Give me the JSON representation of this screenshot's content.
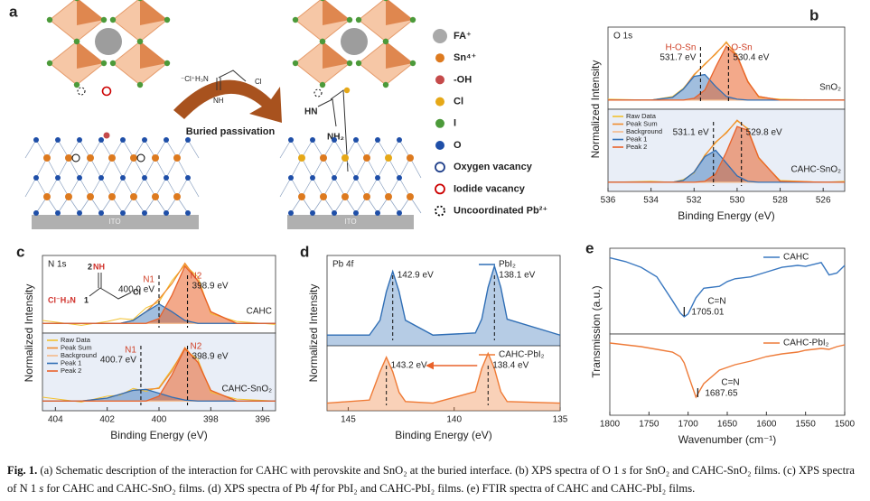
{
  "panel_label": "a",
  "schematic": {
    "legend": [
      "FA⁺",
      "Sn⁴⁺",
      "-OH",
      "Cl",
      "I",
      "O",
      "Oxygen vacancy",
      "Iodide vacancy",
      "Uncoordinated Pb²⁺"
    ],
    "arrow_label": "Buried passivation",
    "molecule": [
      "⁻Cl⁺H₃N",
      "NH",
      "Cl"
    ],
    "bound_molecule": [
      "HN",
      "NH₂"
    ],
    "substrates": [
      "ITO",
      "ITO"
    ]
  },
  "chart_data": [
    {
      "type": "line",
      "panel_label": "b",
      "title": "O 1s",
      "xlabel": "Binding Energy (eV)",
      "ylabel": "Normalized Intensity",
      "xlim": [
        536,
        525
      ],
      "xticks": [
        536,
        534,
        532,
        530,
        528,
        526
      ],
      "ylim": [
        0,
        9
      ],
      "x": [
        536,
        534,
        533,
        532.5,
        532,
        531.5,
        531,
        530.5,
        530,
        529.5,
        529,
        528,
        526,
        525
      ],
      "series": [
        {
          "name": "Raw Data",
          "color": "#f2c12e"
        },
        {
          "name": "Peak Sum",
          "color": "#f08c2e"
        },
        {
          "name": "Background",
          "color": "#f5b98a"
        },
        {
          "name": "Peak 1",
          "color": "#2f6eb5"
        },
        {
          "name": "Peak 2",
          "color": "#e9622a"
        }
      ],
      "panels": [
        {
          "name": "SnO₂",
          "values": [
            [
              1.1,
              1,
              1.4,
              2.3,
              3.7,
              5,
              6,
              7.4,
              5.8,
              3.1,
              1.3,
              1.1,
              1,
              1
            ],
            [
              1,
              1,
              1.3,
              2.2,
              3.8,
              4.9,
              6.1,
              7.3,
              5.9,
              3,
              1.4,
              1,
              1,
              1
            ],
            [
              1,
              1,
              1,
              1,
              1,
              1,
              1,
              1,
              1,
              1,
              1,
              1,
              1,
              1
            ],
            [
              1,
              1,
              1.3,
              2.2,
              3.6,
              3.8,
              2.5,
              1.4,
              1.1,
              1,
              1,
              1,
              1,
              1
            ],
            [
              1,
              1,
              1,
              1,
              1.2,
              2.1,
              4.6,
              6.9,
              5.8,
              3,
              1.4,
              1,
              1,
              1
            ]
          ],
          "peaks": [
            {
              "value": 531.7,
              "label": "531.7 eV",
              "name": "H-O-Sn"
            },
            {
              "value": 530.4,
              "label": "530.4 eV",
              "name": "O-Sn"
            }
          ]
        },
        {
          "name": "CAHC-SnO₂",
          "values": [
            [
              1,
              1.1,
              1,
              1.3,
              2,
              4,
              5.3,
              6.5,
              7.7,
              6.9,
              3.6,
              1.2,
              1,
              1.1
            ],
            [
              1,
              1,
              1,
              1.2,
              2.1,
              3.9,
              5.4,
              6.4,
              7.8,
              6.8,
              3.7,
              1.1,
              1,
              1
            ],
            [
              1,
              1,
              1,
              1,
              1,
              1,
              1,
              1,
              1,
              1,
              1,
              1,
              1,
              1
            ],
            [
              1,
              1,
              1,
              1.2,
              2.1,
              3.8,
              4.5,
              3.1,
              1.7,
              1.1,
              1,
              1,
              1,
              1
            ],
            [
              1,
              1,
              1,
              1,
              1,
              1.1,
              1.9,
              4.3,
              7.1,
              6.7,
              3.7,
              1.1,
              1,
              1
            ]
          ],
          "peaks": [
            {
              "value": 531.1,
              "label": "531.1 eV"
            },
            {
              "value": 529.8,
              "label": "529.8 eV"
            }
          ]
        }
      ]
    },
    {
      "type": "line",
      "panel_label": "c",
      "title": "N 1s",
      "xlabel": "Binding Energy (eV)",
      "ylabel": "Normalized Intensity",
      "xlim": [
        404.5,
        395.5
      ],
      "xticks": [
        404,
        402,
        400,
        398,
        396
      ],
      "ylim": [
        0,
        8
      ],
      "x": [
        404.5,
        403,
        402,
        401.5,
        401,
        400.5,
        400,
        399.5,
        399,
        398.5,
        398,
        397,
        395.5
      ],
      "annotations": [
        "2",
        "NH",
        "Cl⁻H₃N",
        "1",
        "Cl"
      ],
      "series": [
        {
          "name": "Raw Data",
          "color": "#f2c12e"
        },
        {
          "name": "Peak Sum",
          "color": "#f08c2e"
        },
        {
          "name": "Background",
          "color": "#f5b98a"
        },
        {
          "name": "Peak 1",
          "color": "#2f6eb5"
        },
        {
          "name": "Peak 2",
          "color": "#e9622a"
        }
      ],
      "panels": [
        {
          "name": "CAHC",
          "values": [
            [
              1.3,
              0.8,
              1.2,
              1.5,
              1.4,
              2.6,
              3.2,
              5.4,
              7,
              5.8,
              2,
              1.2,
              0.9
            ],
            [
              1,
              1,
              1,
              1,
              1.3,
              2.2,
              3.5,
              5.1,
              7.2,
              5.4,
              2.2,
              1,
              1
            ],
            [
              1,
              1,
              1,
              1,
              1,
              1,
              1,
              1,
              1,
              1,
              1,
              1,
              1
            ],
            [
              1,
              1,
              1,
              1,
              1.3,
              2.2,
              3,
              2.2,
              1.3,
              1,
              1,
              1,
              1
            ],
            [
              1,
              1,
              1,
              1,
              1,
              1,
              1.5,
              3.9,
              6.9,
              5.4,
              2.2,
              1,
              1
            ]
          ],
          "peaks": [
            {
              "value": 400.0,
              "label": "400.0 eV",
              "name": "N1"
            },
            {
              "value": 398.9,
              "label": "398.9 eV",
              "name": "N2"
            }
          ]
        },
        {
          "name": "CAHC-SnO₂",
          "values": [
            [
              1.4,
              0.9,
              1.5,
              1.6,
              2.3,
              2,
              2.4,
              4.3,
              6.3,
              5.3,
              1.9,
              1.2,
              1
            ],
            [
              1,
              1,
              1.3,
              1.7,
              2.1,
              2.2,
              2.3,
              4.1,
              6.5,
              5,
              2.1,
              1,
              1
            ],
            [
              1,
              1,
              1,
              1,
              1,
              1,
              1,
              1,
              1,
              1,
              1,
              1,
              1
            ],
            [
              1,
              1,
              1.3,
              1.7,
              2.1,
              2.2,
              1.8,
              1.4,
              1.1,
              1,
              1,
              1,
              1
            ],
            [
              1,
              1,
              1,
              1,
              1,
              1,
              1.5,
              3.7,
              6.4,
              5,
              2.1,
              1,
              1
            ]
          ],
          "peaks": [
            {
              "value": 400.7,
              "label": "400.7 eV",
              "name": "N1"
            },
            {
              "value": 398.9,
              "label": "398.9 eV",
              "name": "N2"
            }
          ]
        }
      ]
    },
    {
      "type": "line",
      "panel_label": "d",
      "title": "Pb 4f",
      "xlabel": "Binding Energy (eV)",
      "ylabel": "Normalized Intensity",
      "xlim": [
        146,
        135
      ],
      "xticks": [
        145,
        140,
        135
      ],
      "ylim": [
        0,
        8.5
      ],
      "x": [
        146,
        144,
        143.5,
        143.2,
        142.9,
        142.6,
        142.3,
        141,
        139,
        138.7,
        138.4,
        138.1,
        137.8,
        137.5,
        135
      ],
      "series": [
        {
          "name": "PbI₂",
          "color": "#2f6eb5",
          "values": [
            1,
            1,
            2.4,
            5.1,
            7,
            5.1,
            2.4,
            1,
            1.2,
            2.5,
            5.5,
            7.5,
            5.5,
            2.5,
            1
          ],
          "peaks": [
            {
              "value": 142.9,
              "label": "142.9 eV"
            },
            {
              "value": 138.1,
              "label": "138.1 eV"
            }
          ]
        },
        {
          "name": "CAHC-PbI₂",
          "color": "#ef7a35",
          "values": [
            1,
            1.4,
            5.1,
            7,
            5.1,
            2.4,
            1.2,
            1,
            2.5,
            5.5,
            7.5,
            5.5,
            2.5,
            1.2,
            1
          ],
          "peaks": [
            {
              "value": 143.2,
              "label": "143.2 eV"
            },
            {
              "value": 138.4,
              "label": "138.4 eV"
            }
          ]
        }
      ]
    },
    {
      "type": "line",
      "panel_label": "e",
      "xlabel": "Wavenumber (cm⁻¹)",
      "ylabel": "Transmission (a.u.)",
      "xlim": [
        1800,
        1500
      ],
      "xticks": [
        1800,
        1750,
        1700,
        1650,
        1600,
        1550,
        1500
      ],
      "ylim": [
        0,
        9
      ],
      "x": [
        1800,
        1780,
        1760,
        1740,
        1720,
        1710,
        1705,
        1700,
        1690,
        1680,
        1660,
        1650,
        1640,
        1620,
        1600,
        1580,
        1560,
        1550,
        1540,
        1530,
        1520,
        1510,
        1500
      ],
      "series": [
        {
          "name": "CAHC",
          "color": "#3a78c0",
          "values": [
            8,
            7.6,
            7,
            6,
            3.5,
            2.2,
            1.8,
            2.1,
            3.8,
            4.8,
            5,
            5.5,
            5.8,
            6,
            6.5,
            7,
            7.2,
            7.1,
            7.3,
            7.5,
            6.2,
            6.4,
            7.2
          ],
          "peaks": [
            {
              "value": 1705.01,
              "name": "C=N"
            }
          ]
        },
        {
          "name": "CAHC-PbI₂",
          "color": "#ee7b39",
          "values": [
            8,
            7.8,
            7.6,
            7.3,
            7,
            6.5,
            5.8,
            4.5,
            2,
            3.5,
            5,
            5.3,
            5.6,
            6,
            6.5,
            6.8,
            7,
            7.2,
            7.3,
            7.4,
            7.3,
            7.6,
            7.8
          ],
          "peaks": [
            {
              "value": 1687.65,
              "name": "C=N"
            }
          ]
        }
      ]
    }
  ],
  "caption": [
    "Fig. 1.",
    " (a) Schematic description of the interaction for CAHC with perovskite and SnO₂ at the buried interface. (b) XPS spectra of O 1 ",
    "s",
    " for SnO₂ and CAHC-SnO₂ films. (c) XPS spectra of N 1 ",
    "s",
    " for CAHC and CAHC-SnO₂ films. (d) XPS spectra of Pb 4",
    "f",
    " for PbI₂ and CAHC-PbI₂ films. (e) FTIR spectra of CAHC and CAHC-PbI₂ films."
  ]
}
